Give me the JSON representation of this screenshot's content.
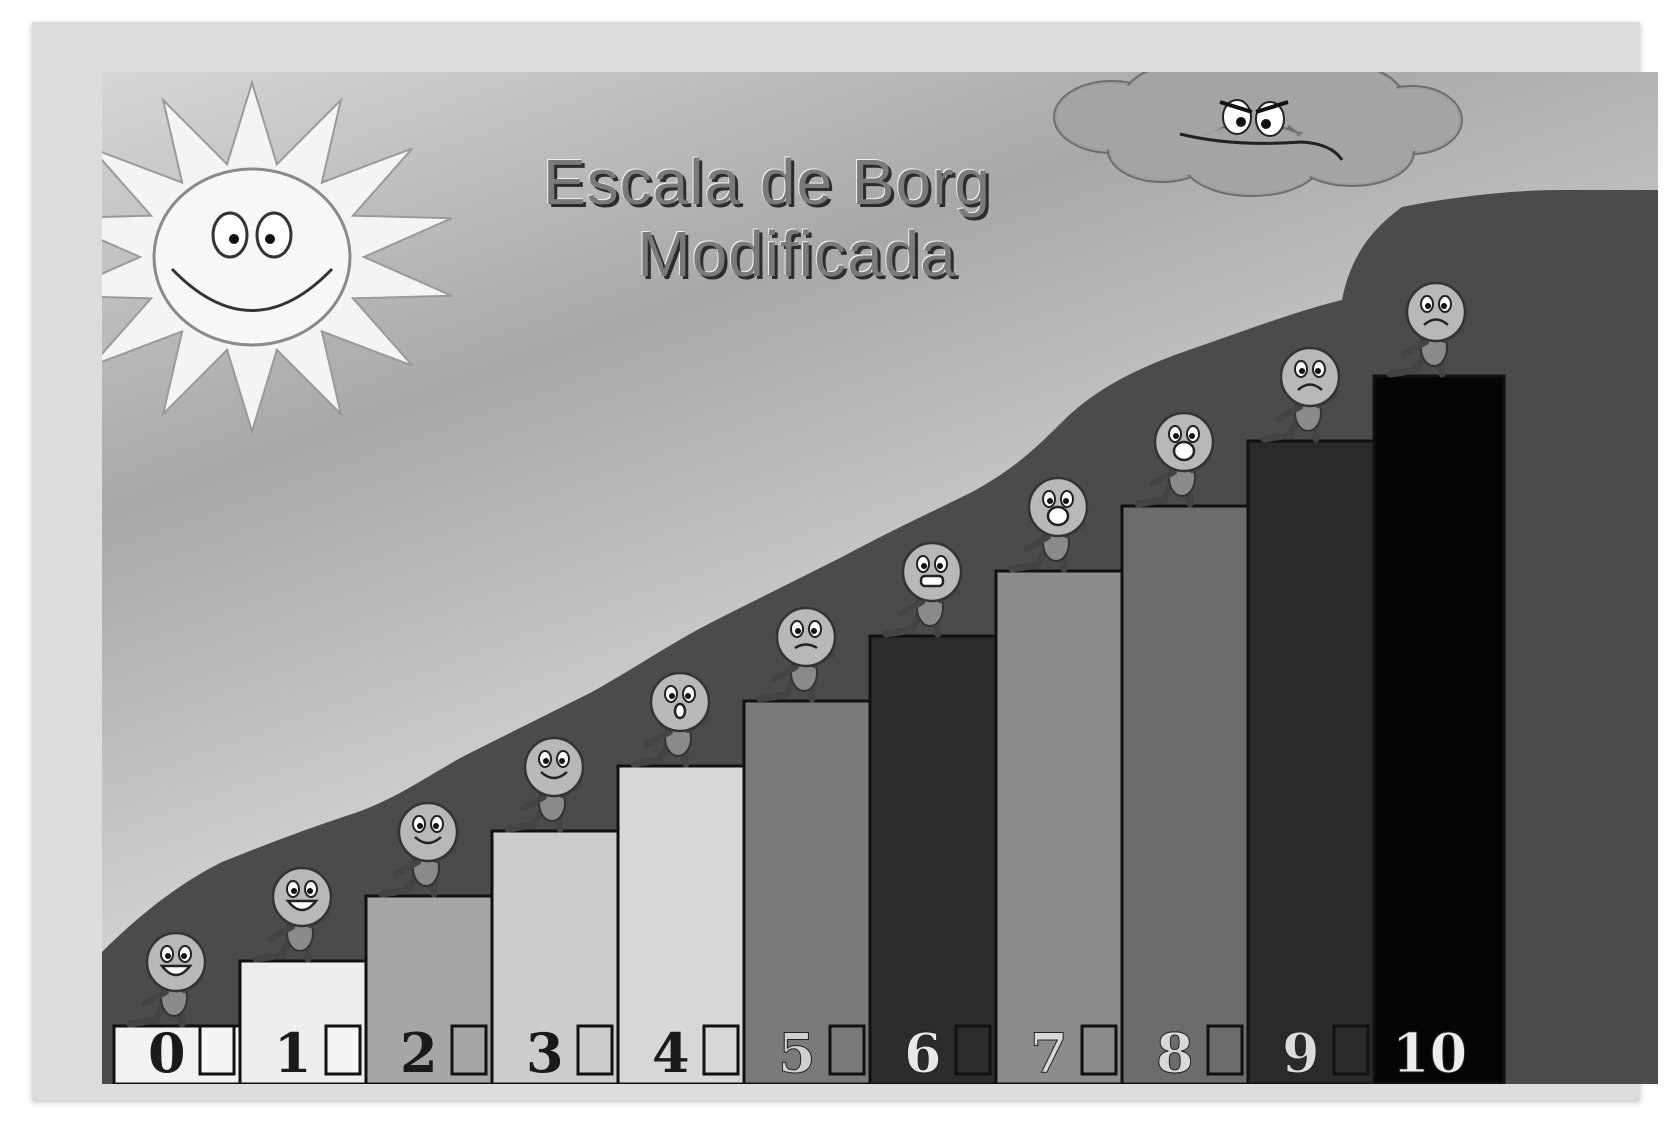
{
  "title": {
    "line1": "Escala de Borg",
    "line2": "Modificada"
  },
  "icons": {
    "sun": "smiling-sun-icon",
    "cloud": "angry-cloud-icon",
    "climber": "stick-figure-climber-icon",
    "checkbox": "empty-checkbox-icon"
  },
  "scale": {
    "levels": [
      {
        "number": "0",
        "step_color": "#f2f2f2",
        "number_color": "#1a1a1a",
        "box_color": "#f5f5f5",
        "face": "laughing"
      },
      {
        "number": "1",
        "step_color": "#eeeeee",
        "number_color": "#1a1a1a",
        "box_color": "#f5f5f5",
        "face": "big-smile"
      },
      {
        "number": "2",
        "step_color": "#a6a6a6",
        "number_color": "#1a1a1a",
        "box_color": "#a6a6a6",
        "face": "smile"
      },
      {
        "number": "3",
        "step_color": "#cccccc",
        "number_color": "#1a1a1a",
        "box_color": "#cccccc",
        "face": "smile"
      },
      {
        "number": "4",
        "step_color": "#d8d8d8",
        "number_color": "#1a1a1a",
        "box_color": "#d8d8d8",
        "face": "surprised"
      },
      {
        "number": "5",
        "step_color": "#7a7a7a",
        "number_color": "#d0d0d0",
        "box_color": "#7a7a7a",
        "face": "worried"
      },
      {
        "number": "6",
        "step_color": "#2c2c2c",
        "number_color": "#e8e8e8",
        "box_color": "#2c2c2c",
        "face": "grimace"
      },
      {
        "number": "7",
        "step_color": "#8c8c8c",
        "number_color": "#d8d8d8",
        "box_color": "#8c8c8c",
        "face": "shout"
      },
      {
        "number": "8",
        "step_color": "#6c6c6c",
        "number_color": "#d8d8d8",
        "box_color": "#6c6c6c",
        "face": "shout"
      },
      {
        "number": "9",
        "step_color": "#2a2a2a",
        "number_color": "#dcdcdc",
        "box_color": "#2a2a2a",
        "face": "exhausted"
      },
      {
        "number": "10",
        "step_color": "#050505",
        "number_color": "#eeeeee",
        "box_color": "",
        "face": "crying"
      }
    ]
  }
}
